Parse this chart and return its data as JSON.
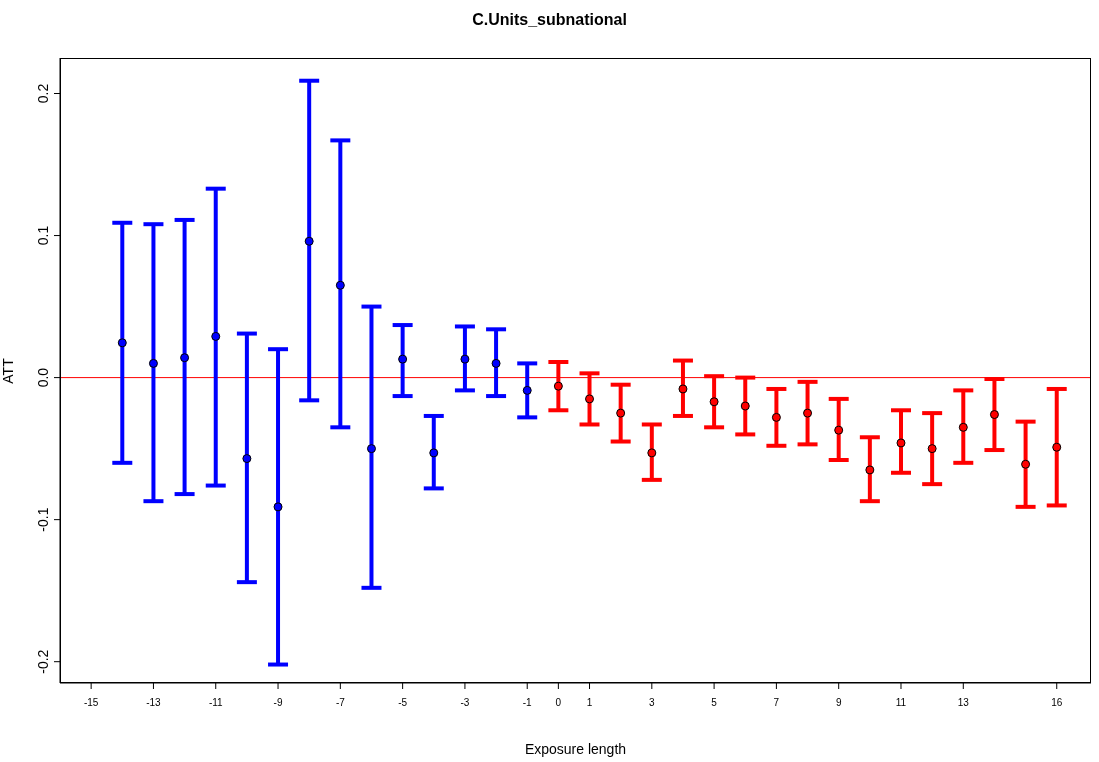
{
  "chart_data": {
    "type": "scatter",
    "title": "C.Units_subnational",
    "xlabel": "Exposure length",
    "ylabel": "ATT",
    "xlim": [
      -16,
      17.1
    ],
    "xticks": [
      -15,
      -13,
      -11,
      -9,
      -7,
      -5,
      -3,
      -1,
      0,
      1,
      3,
      5,
      7,
      9,
      11,
      13,
      16
    ],
    "ylim": [
      -0.215,
      0.225
    ],
    "yticks": [
      -0.2,
      -0.1,
      {
        "value": 0,
        "label": "0.0"
      },
      0.1,
      0.2
    ],
    "grid": false,
    "legend": false,
    "marker": "circle",
    "ref_lines": [
      {
        "axis": "y",
        "value": 0,
        "color": "#ff0000"
      }
    ],
    "series": [
      {
        "color": "#0000ff",
        "x": [
          -14,
          -13,
          -12,
          -11,
          -10,
          -9,
          -8,
          -7,
          -6,
          -5,
          -4,
          -3,
          -2,
          -1
        ],
        "values": [
          0.0245,
          0.01,
          0.014,
          0.029,
          -0.057,
          -0.091,
          0.096,
          0.065,
          -0.05,
          0.013,
          -0.053,
          0.013,
          0.01,
          -0.009
        ],
        "errors": [
          [
            -0.06,
            0.109
          ],
          [
            -0.087,
            0.108
          ],
          [
            -0.082,
            0.111
          ],
          [
            -0.076,
            0.133
          ],
          [
            -0.144,
            0.031
          ],
          [
            -0.202,
            0.02
          ],
          [
            -0.016,
            0.209
          ],
          [
            -0.035,
            0.167
          ],
          [
            -0.148,
            0.05
          ],
          [
            -0.013,
            0.037
          ],
          [
            -0.078,
            -0.027
          ],
          [
            -0.009,
            0.036
          ],
          [
            -0.013,
            0.034
          ],
          [
            -0.028,
            0.01
          ]
        ]
      },
      {
        "color": "#ff0000",
        "x": [
          0,
          1,
          2,
          3,
          4,
          5,
          6,
          7,
          8,
          9,
          10,
          11,
          12,
          13,
          14,
          15,
          16
        ],
        "values": [
          -0.006,
          -0.015,
          -0.025,
          -0.053,
          -0.008,
          -0.017,
          -0.02,
          -0.028,
          -0.025,
          -0.037,
          -0.065,
          -0.046,
          -0.05,
          -0.035,
          -0.026,
          -0.061,
          -0.049
        ],
        "errors": [
          [
            -0.023,
            0.011
          ],
          [
            -0.033,
            0.003
          ],
          [
            -0.045,
            -0.005
          ],
          [
            -0.072,
            -0.033
          ],
          [
            -0.027,
            0.012
          ],
          [
            -0.035,
            0.001
          ],
          [
            -0.04,
            0.0
          ],
          [
            -0.048,
            -0.008
          ],
          [
            -0.047,
            -0.003
          ],
          [
            -0.058,
            -0.015
          ],
          [
            -0.087,
            -0.042
          ],
          [
            -0.067,
            -0.023
          ],
          [
            -0.075,
            -0.025
          ],
          [
            -0.06,
            -0.009
          ],
          [
            -0.051,
            -0.001
          ],
          [
            -0.091,
            -0.031
          ],
          [
            -0.09,
            -0.008
          ]
        ]
      }
    ]
  }
}
